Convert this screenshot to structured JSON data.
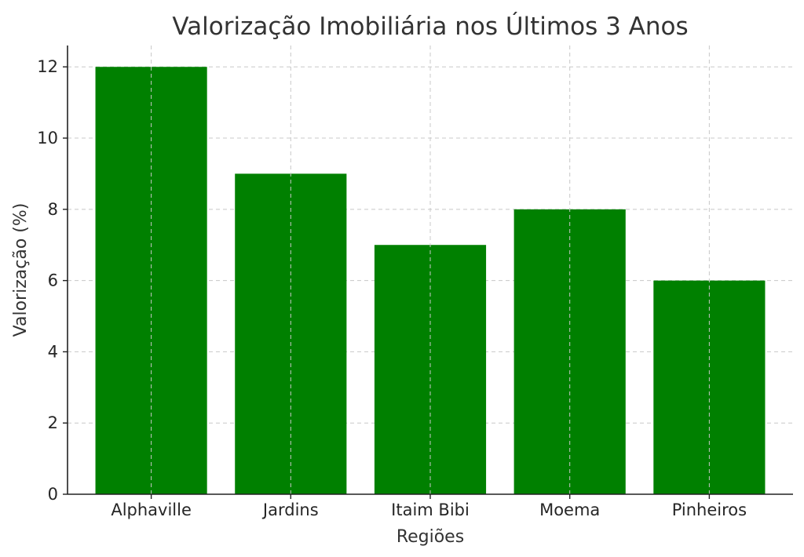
{
  "chart_data": {
    "type": "bar",
    "title": "Valorização Imobiliária nos Últimos 3 Anos",
    "xlabel": "Regiões",
    "ylabel": "Valorização (%)",
    "categories": [
      "Alphaville",
      "Jardins",
      "Itaim Bibi",
      "Moema",
      "Pinheiros"
    ],
    "values": [
      12,
      9,
      7,
      8,
      6
    ],
    "ylim": [
      0,
      12.6
    ],
    "yticks": [
      0,
      2,
      4,
      6,
      8,
      10,
      12
    ],
    "grid": true,
    "bar_color": "#008000"
  }
}
